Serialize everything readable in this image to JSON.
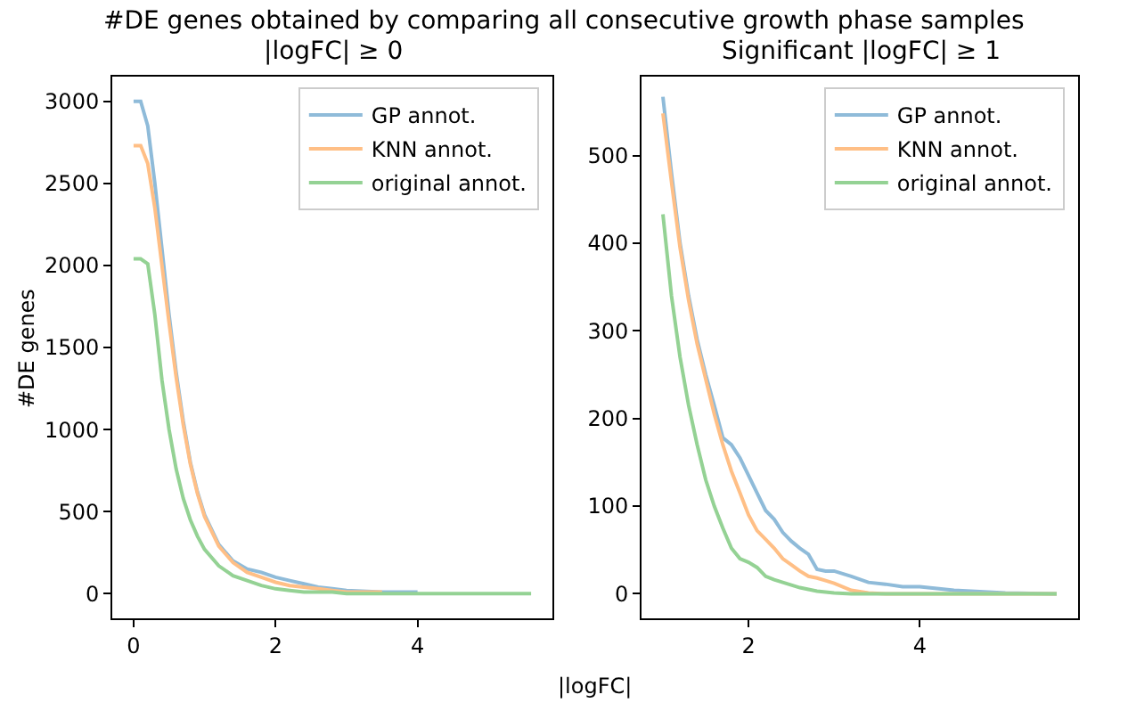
{
  "chart_data": [
    {
      "type": "line",
      "title": "#DE genes obtained by comparing all consecutive growth phase samples",
      "subtitle": "|logFC| ≥ 0",
      "xlabel": "|logFC|",
      "ylabel": "#DE genes",
      "xlim": [
        -0.3,
        5.9
      ],
      "xticks": [
        0,
        2,
        4
      ],
      "ylim": [
        -150,
        3150
      ],
      "yticks": [
        0,
        500,
        1000,
        1500,
        2000,
        2500,
        3000
      ],
      "legend": "top right",
      "marker": "none",
      "line_style": "solid",
      "series": [
        {
          "name": "GP annot.",
          "color": "#8fbbd9",
          "x": [
            0,
            0.1,
            0.2,
            0.3,
            0.4,
            0.5,
            0.6,
            0.7,
            0.8,
            0.9,
            1.0,
            1.2,
            1.4,
            1.6,
            1.8,
            2.0,
            2.2,
            2.4,
            2.6,
            2.8,
            3.0,
            3.5,
            4.0
          ],
          "values": [
            3000,
            3000,
            2850,
            2500,
            2100,
            1700,
            1350,
            1050,
            800,
            620,
            480,
            300,
            200,
            150,
            130,
            100,
            80,
            60,
            40,
            30,
            20,
            10,
            10
          ]
        },
        {
          "name": "KNN annot.",
          "color": "#ffbf86",
          "x": [
            0,
            0.1,
            0.2,
            0.3,
            0.4,
            0.5,
            0.6,
            0.7,
            0.8,
            0.9,
            1.0,
            1.2,
            1.4,
            1.6,
            1.8,
            2.0,
            2.2,
            2.4,
            2.6,
            2.8,
            3.0,
            3.5
          ],
          "values": [
            2730,
            2730,
            2620,
            2350,
            2000,
            1650,
            1320,
            1030,
            790,
            610,
            470,
            290,
            190,
            130,
            100,
            70,
            50,
            40,
            30,
            20,
            10,
            10
          ]
        },
        {
          "name": "original annot.",
          "color": "#94d294",
          "x": [
            0,
            0.1,
            0.2,
            0.3,
            0.4,
            0.5,
            0.6,
            0.7,
            0.8,
            0.9,
            1.0,
            1.2,
            1.4,
            1.6,
            1.8,
            2.0,
            2.2,
            2.4,
            2.6,
            2.8,
            3.0,
            4.0,
            5.0,
            5.6
          ],
          "values": [
            2040,
            2040,
            2010,
            1700,
            1300,
            1000,
            760,
            580,
            450,
            350,
            270,
            170,
            110,
            80,
            50,
            30,
            20,
            10,
            10,
            10,
            0,
            0,
            0,
            0
          ]
        }
      ]
    },
    {
      "type": "line",
      "title": "Significant |logFC| ≥ 1",
      "xlim": [
        0.75,
        5.85
      ],
      "xticks": [
        2,
        4
      ],
      "ylim": [
        -28,
        590
      ],
      "yticks": [
        0,
        100,
        200,
        300,
        400,
        500
      ],
      "legend": "top right",
      "marker": "none",
      "line_style": "solid",
      "series": [
        {
          "name": "GP annot.",
          "color": "#8fbbd9",
          "x": [
            1.0,
            1.1,
            1.2,
            1.3,
            1.4,
            1.5,
            1.6,
            1.7,
            1.8,
            1.9,
            2.0,
            2.1,
            2.2,
            2.3,
            2.4,
            2.5,
            2.6,
            2.7,
            2.8,
            2.9,
            3.0,
            3.2,
            3.4,
            3.6,
            3.8,
            4.0,
            4.2,
            4.4,
            4.6,
            5.0,
            5.6
          ],
          "values": [
            567,
            480,
            400,
            340,
            290,
            250,
            215,
            178,
            170,
            155,
            135,
            115,
            95,
            85,
            70,
            60,
            52,
            45,
            28,
            26,
            26,
            20,
            13,
            11,
            8,
            8,
            6,
            4,
            3,
            1,
            0
          ]
        },
        {
          "name": "KNN annot.",
          "color": "#ffbf86",
          "x": [
            1.0,
            1.1,
            1.2,
            1.3,
            1.4,
            1.5,
            1.6,
            1.7,
            1.8,
            1.9,
            2.0,
            2.1,
            2.2,
            2.3,
            2.4,
            2.5,
            2.6,
            2.7,
            2.8,
            2.9,
            3.0,
            3.2,
            3.4,
            3.6,
            5.6
          ],
          "values": [
            548,
            470,
            395,
            335,
            285,
            245,
            205,
            170,
            140,
            115,
            90,
            72,
            62,
            52,
            40,
            33,
            26,
            20,
            18,
            15,
            12,
            4,
            1,
            0,
            0
          ]
        },
        {
          "name": "original annot.",
          "color": "#94d294",
          "x": [
            1.0,
            1.1,
            1.2,
            1.3,
            1.4,
            1.5,
            1.6,
            1.7,
            1.8,
            1.9,
            2.0,
            2.1,
            2.2,
            2.3,
            2.4,
            2.5,
            2.6,
            2.7,
            2.8,
            3.0,
            3.2,
            5.6
          ],
          "values": [
            433,
            340,
            270,
            215,
            170,
            130,
            100,
            75,
            52,
            40,
            36,
            30,
            20,
            16,
            13,
            10,
            7,
            5,
            3,
            1,
            0,
            0
          ]
        }
      ]
    }
  ]
}
